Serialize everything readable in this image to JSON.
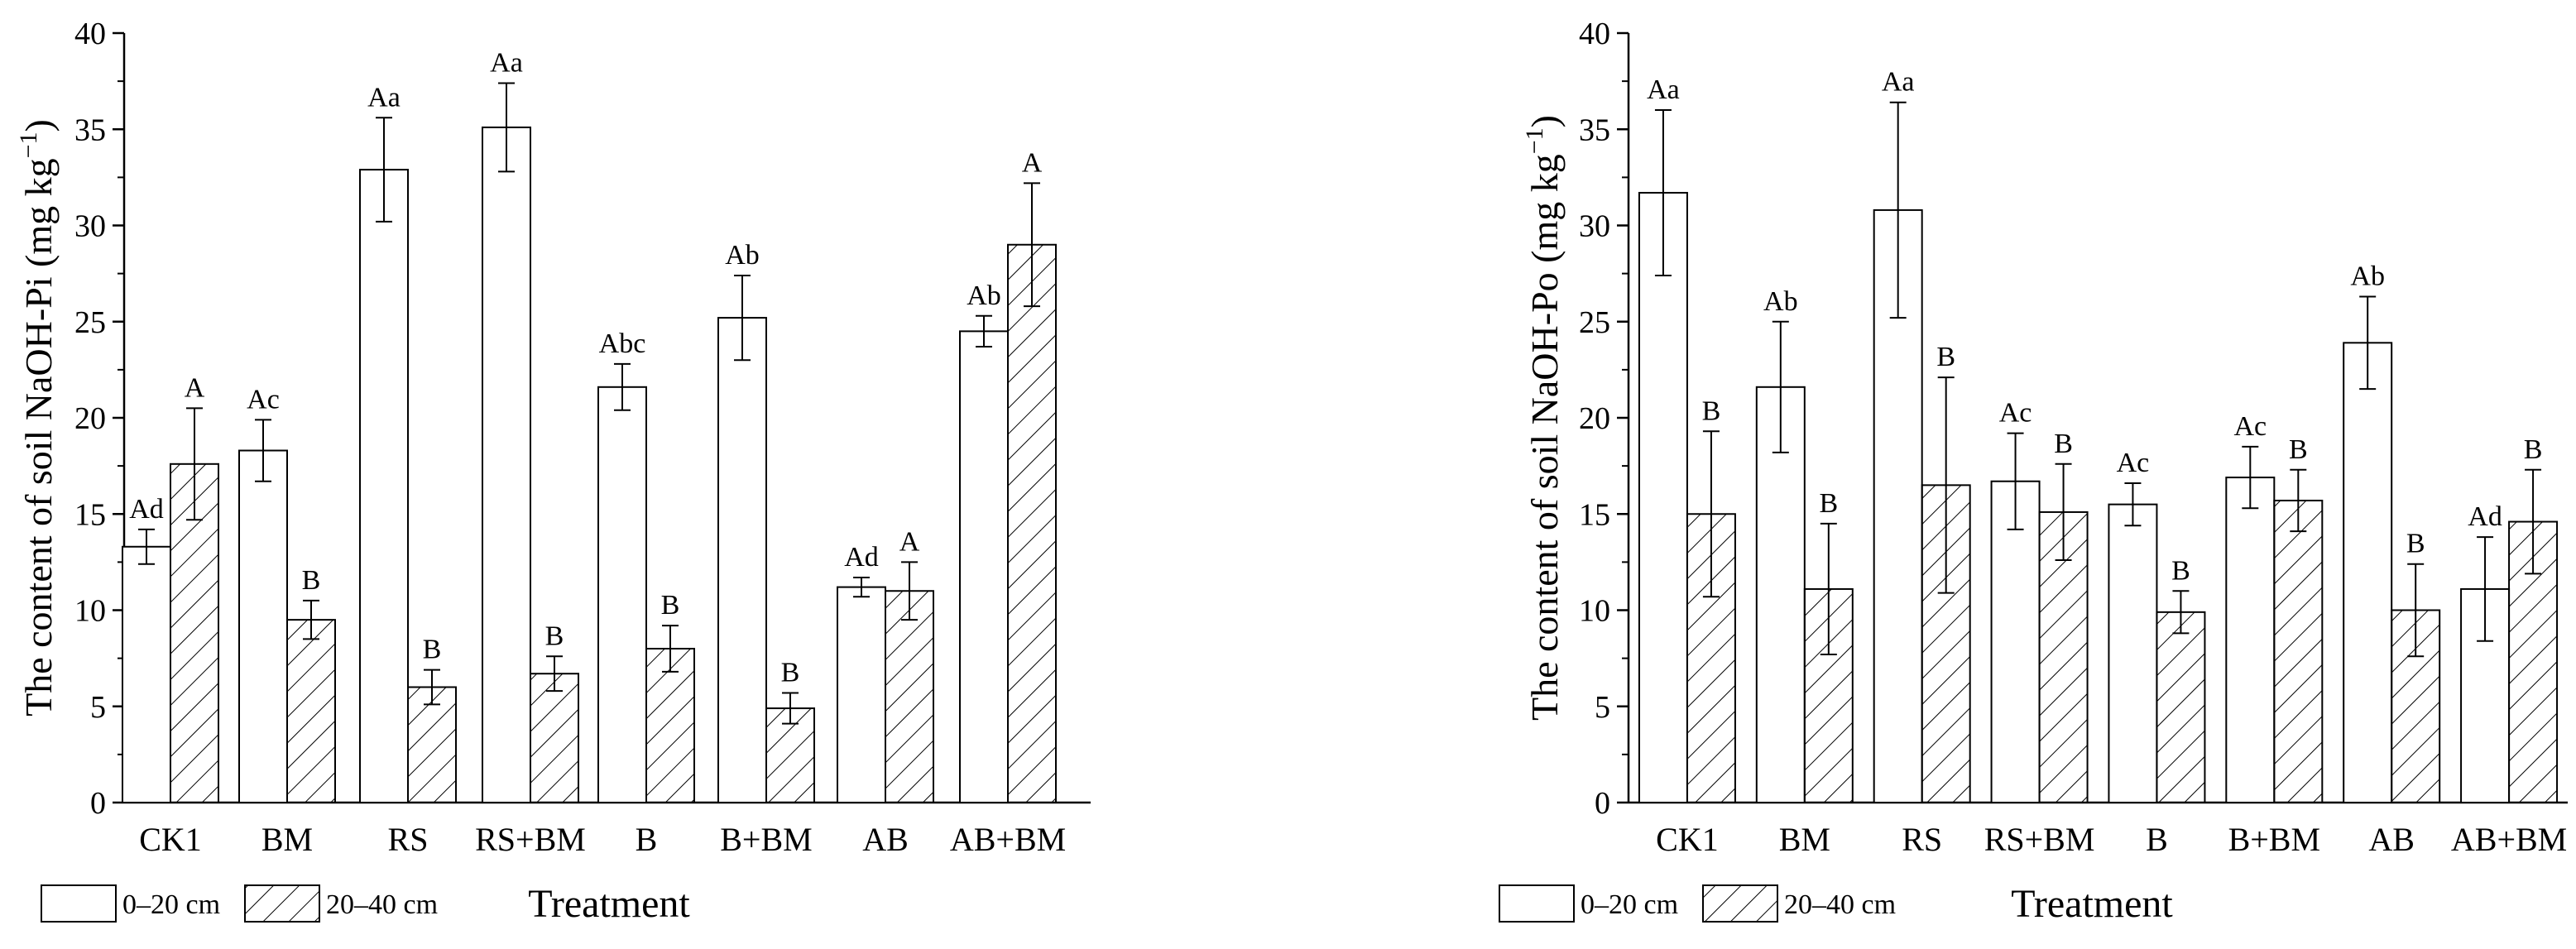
{
  "legend": {
    "series": [
      "0–20 cm",
      "20–40 cm"
    ]
  },
  "chart_data": [
    {
      "type": "bar",
      "ylabel": "The content of soil NaOH-Pi (mg kg",
      "ylabel_sup": "−1",
      "ylabel_end": ")",
      "xlabel": "Treatment",
      "ylim": [
        0,
        40
      ],
      "yticks": [
        "0",
        "5",
        "10",
        "15",
        "20",
        "25",
        "30",
        "35",
        "40"
      ],
      "categories": [
        "CK1",
        "BM",
        "RS",
        "RS+BM",
        "B",
        "B+BM",
        "AB",
        "AB+BM"
      ],
      "series": [
        {
          "name": "0–20 cm",
          "values": [
            13.3,
            18.3,
            32.9,
            35.1,
            21.6,
            25.2,
            11.2,
            24.5
          ],
          "errors": [
            0.9,
            1.6,
            2.7,
            2.3,
            1.2,
            2.2,
            0.5,
            0.8
          ],
          "labels": [
            "Ad",
            "Ac",
            "Aa",
            "Aa",
            "Abc",
            "Ab",
            "Ad",
            "Ab"
          ]
        },
        {
          "name": "20–40 cm",
          "values": [
            17.6,
            9.5,
            6.0,
            6.7,
            8.0,
            4.9,
            11.0,
            29.0
          ],
          "errors": [
            2.9,
            1.0,
            0.9,
            0.9,
            1.2,
            0.8,
            1.5,
            3.2
          ],
          "labels": [
            "A",
            "B",
            "B",
            "B",
            "B",
            "B",
            "A",
            "A"
          ]
        }
      ]
    },
    {
      "type": "bar",
      "ylabel": "The content of soil NaOH-Po (mg kg",
      "ylabel_sup": "−1",
      "ylabel_end": ")",
      "xlabel": "Treatment",
      "ylim": [
        0,
        40
      ],
      "yticks": [
        "0",
        "5",
        "10",
        "15",
        "20",
        "25",
        "30",
        "35",
        "40"
      ],
      "categories": [
        "CK1",
        "BM",
        "RS",
        "RS+BM",
        "B",
        "B+BM",
        "AB",
        "AB+BM"
      ],
      "series": [
        {
          "name": "0–20 cm",
          "values": [
            31.7,
            21.6,
            30.8,
            16.7,
            15.5,
            16.9,
            23.9,
            11.1
          ],
          "errors": [
            4.3,
            3.4,
            5.6,
            2.5,
            1.1,
            1.6,
            2.4,
            2.7
          ],
          "labels": [
            "Aa",
            "Ab",
            "Aa",
            "Ac",
            "Ac",
            "Ac",
            "Ab",
            "Ad"
          ]
        },
        {
          "name": "20–40 cm",
          "values": [
            15.0,
            11.1,
            16.5,
            15.1,
            9.9,
            15.7,
            10.0,
            14.6
          ],
          "errors": [
            4.3,
            3.4,
            5.6,
            2.5,
            1.1,
            1.6,
            2.4,
            2.7
          ],
          "labels": [
            "B",
            "B",
            "B",
            "B",
            "B",
            "B",
            "B",
            "B"
          ]
        }
      ]
    }
  ]
}
